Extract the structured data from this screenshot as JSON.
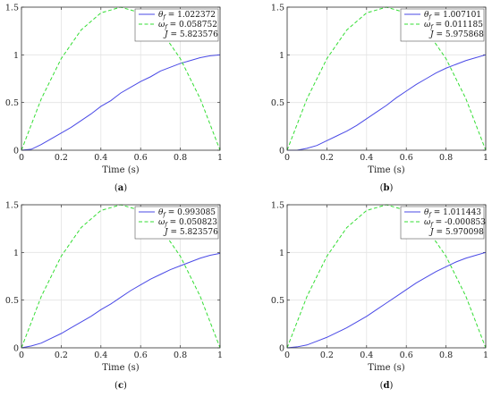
{
  "chart_data": [
    {
      "type": "line",
      "panel_label": "a",
      "xlabel": "Time (s)",
      "xlim": [
        0,
        1
      ],
      "ylim": [
        0,
        1.5
      ],
      "xticks": [
        "0",
        "0.2",
        "0.4",
        "0.6",
        "0.8",
        "1"
      ],
      "yticks": [
        "0",
        "0.5",
        "1",
        "1.5"
      ],
      "grid": true,
      "legend_position": "top-right",
      "series": [
        {
          "name": "θf",
          "legend_symbol": "θ",
          "legend_subscript": "f",
          "legend_value": "= 1.022372",
          "color": "#4a4ae6",
          "style": "solid",
          "x": [
            0,
            0.05,
            0.1,
            0.15,
            0.2,
            0.25,
            0.3,
            0.35,
            0.4,
            0.45,
            0.5,
            0.55,
            0.6,
            0.65,
            0.7,
            0.75,
            0.8,
            0.85,
            0.9,
            0.95,
            1.0
          ],
          "y": [
            0.0,
            0.01,
            0.06,
            0.12,
            0.18,
            0.24,
            0.31,
            0.38,
            0.46,
            0.52,
            0.6,
            0.66,
            0.72,
            0.77,
            0.83,
            0.87,
            0.91,
            0.94,
            0.97,
            0.99,
            1.0
          ]
        },
        {
          "name": "ωf",
          "legend_symbol": "ω",
          "legend_subscript": "f",
          "legend_value": "= 0.058752",
          "color": "#33dd33",
          "style": "dashed",
          "x": [
            0,
            0.1,
            0.2,
            0.3,
            0.4,
            0.5,
            0.6,
            0.7,
            0.8,
            0.9,
            1.0
          ],
          "y": [
            0.0,
            0.54,
            0.96,
            1.26,
            1.44,
            1.5,
            1.44,
            1.26,
            0.96,
            0.54,
            0.0
          ]
        }
      ],
      "legend_extra": {
        "symbol": "J",
        "value": "= 5.823576"
      }
    },
    {
      "type": "line",
      "panel_label": "b",
      "xlabel": "Time (s)",
      "xlim": [
        0,
        1
      ],
      "ylim": [
        0,
        1.5
      ],
      "xticks": [
        "0",
        "0.2",
        "0.4",
        "0.6",
        "0.8",
        "1"
      ],
      "yticks": [
        "0",
        "0.5",
        "1",
        "1.5"
      ],
      "grid": true,
      "legend_position": "top-right",
      "series": [
        {
          "name": "θf",
          "legend_symbol": "θ",
          "legend_subscript": "f",
          "legend_value": "= 1.007101",
          "color": "#4a4ae6",
          "style": "solid",
          "x": [
            0,
            0.05,
            0.1,
            0.15,
            0.2,
            0.25,
            0.3,
            0.35,
            0.4,
            0.45,
            0.5,
            0.55,
            0.6,
            0.65,
            0.7,
            0.75,
            0.8,
            0.85,
            0.9,
            0.95,
            1.0
          ],
          "y": [
            0.0,
            0.0,
            0.02,
            0.05,
            0.1,
            0.15,
            0.2,
            0.26,
            0.33,
            0.4,
            0.47,
            0.55,
            0.62,
            0.69,
            0.75,
            0.81,
            0.86,
            0.9,
            0.94,
            0.97,
            1.0
          ]
        },
        {
          "name": "ωf",
          "legend_symbol": "ω",
          "legend_subscript": "f",
          "legend_value": "= 0.011185",
          "color": "#33dd33",
          "style": "dashed",
          "x": [
            0,
            0.1,
            0.2,
            0.3,
            0.4,
            0.5,
            0.6,
            0.7,
            0.8,
            0.9,
            1.0
          ],
          "y": [
            0.0,
            0.54,
            0.96,
            1.26,
            1.44,
            1.5,
            1.44,
            1.26,
            0.96,
            0.54,
            0.0
          ]
        }
      ],
      "legend_extra": {
        "symbol": "J",
        "value": "= 5.975868"
      }
    },
    {
      "type": "line",
      "panel_label": "c",
      "xlabel": "Time (s)",
      "xlim": [
        0,
        1
      ],
      "ylim": [
        0,
        1.5
      ],
      "xticks": [
        "0",
        "0.2",
        "0.4",
        "0.6",
        "0.8",
        "1"
      ],
      "yticks": [
        "0",
        "0.5",
        "1",
        "1.5"
      ],
      "grid": true,
      "legend_position": "top-right",
      "series": [
        {
          "name": "θf",
          "legend_symbol": "θ",
          "legend_subscript": "f",
          "legend_value": "= 0.993085",
          "color": "#4a4ae6",
          "style": "solid",
          "x": [
            0,
            0.05,
            0.1,
            0.15,
            0.2,
            0.25,
            0.3,
            0.35,
            0.4,
            0.45,
            0.5,
            0.55,
            0.6,
            0.65,
            0.7,
            0.75,
            0.8,
            0.85,
            0.9,
            0.95,
            1.0
          ],
          "y": [
            0.0,
            0.02,
            0.05,
            0.1,
            0.15,
            0.21,
            0.27,
            0.33,
            0.4,
            0.46,
            0.53,
            0.6,
            0.66,
            0.72,
            0.77,
            0.82,
            0.86,
            0.9,
            0.94,
            0.97,
            0.99
          ]
        },
        {
          "name": "ωf",
          "legend_symbol": "ω",
          "legend_subscript": "f",
          "legend_value": "= 0.050823",
          "color": "#33dd33",
          "style": "dashed",
          "x": [
            0,
            0.1,
            0.2,
            0.3,
            0.4,
            0.5,
            0.6,
            0.7,
            0.8,
            0.9,
            1.0
          ],
          "y": [
            0.0,
            0.54,
            0.96,
            1.26,
            1.44,
            1.5,
            1.44,
            1.26,
            0.96,
            0.54,
            0.0
          ]
        }
      ],
      "legend_extra": {
        "symbol": "J",
        "value": "= 5.823576"
      }
    },
    {
      "type": "line",
      "panel_label": "d",
      "xlabel": "Time (s)",
      "xlim": [
        0,
        1
      ],
      "ylim": [
        0,
        1.5
      ],
      "xticks": [
        "0",
        "0.2",
        "0.4",
        "0.6",
        "0.8",
        "1"
      ],
      "yticks": [
        "0",
        "0.5",
        "1",
        "1.5"
      ],
      "grid": true,
      "legend_position": "top-right",
      "series": [
        {
          "name": "θf",
          "legend_symbol": "θ",
          "legend_subscript": "f",
          "legend_value": "= 1.011443",
          "color": "#4a4ae6",
          "style": "solid",
          "x": [
            0,
            0.05,
            0.1,
            0.15,
            0.2,
            0.25,
            0.3,
            0.35,
            0.4,
            0.45,
            0.5,
            0.55,
            0.6,
            0.65,
            0.7,
            0.75,
            0.8,
            0.85,
            0.9,
            0.95,
            1.0
          ],
          "y": [
            0.0,
            0.01,
            0.03,
            0.07,
            0.11,
            0.16,
            0.21,
            0.27,
            0.33,
            0.4,
            0.47,
            0.54,
            0.61,
            0.68,
            0.74,
            0.8,
            0.85,
            0.9,
            0.94,
            0.97,
            1.0
          ]
        },
        {
          "name": "ωf",
          "legend_symbol": "ω",
          "legend_subscript": "f",
          "legend_value": "= -0.000853",
          "color": "#33dd33",
          "style": "dashed",
          "x": [
            0,
            0.1,
            0.2,
            0.3,
            0.4,
            0.5,
            0.6,
            0.7,
            0.8,
            0.9,
            1.0
          ],
          "y": [
            0.0,
            0.54,
            0.96,
            1.26,
            1.44,
            1.5,
            1.44,
            1.26,
            0.96,
            0.54,
            0.0
          ]
        }
      ],
      "legend_extra": {
        "symbol": "J",
        "value": "= 5.970098"
      }
    }
  ]
}
